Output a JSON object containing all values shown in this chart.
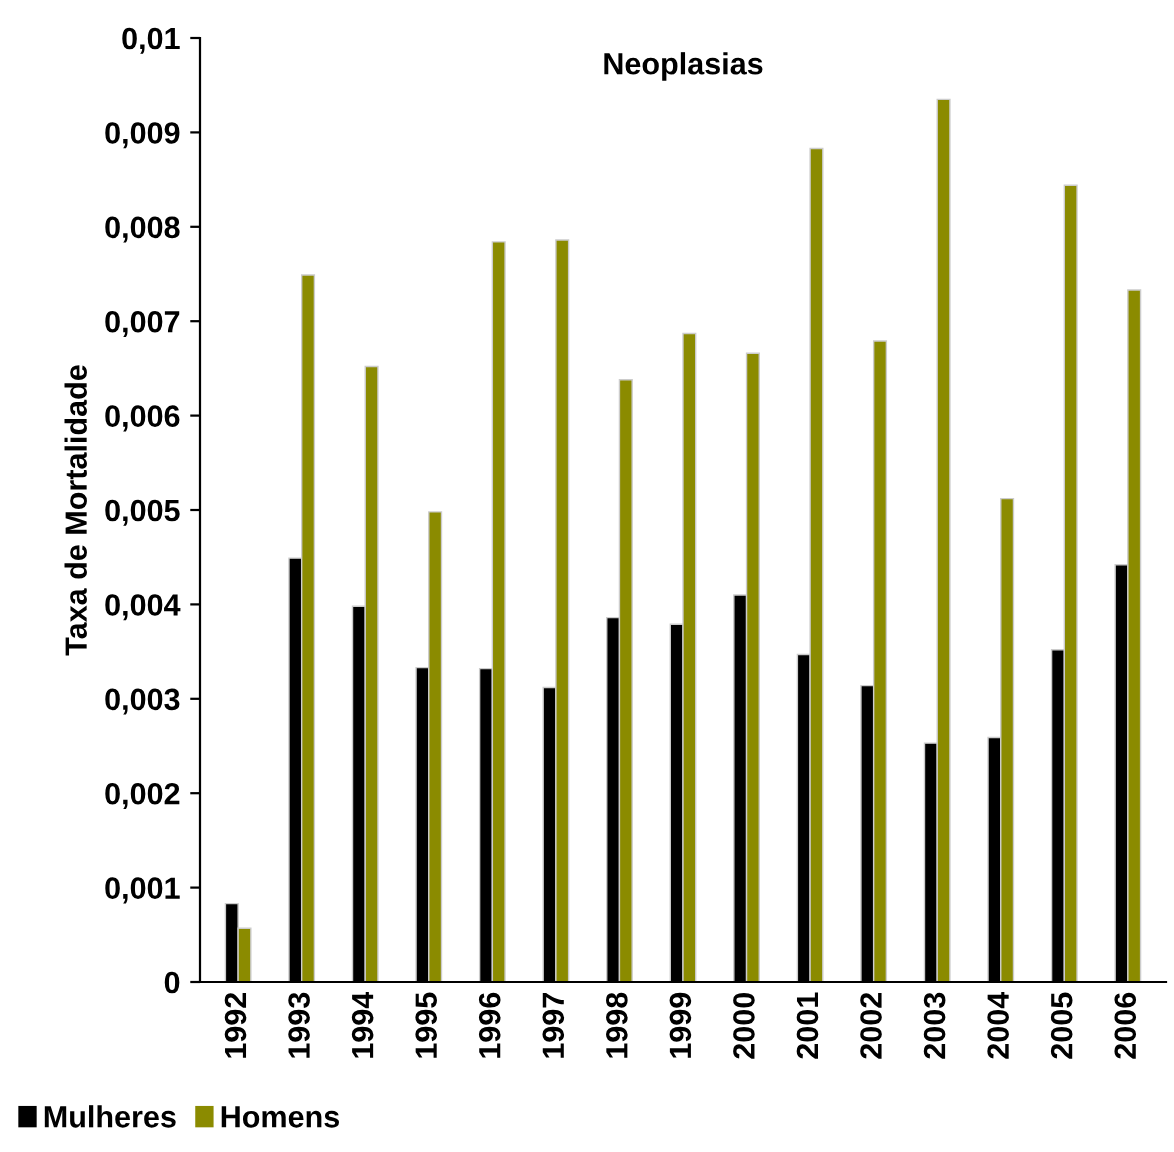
{
  "chart_data": {
    "type": "bar",
    "title": "Neoplasias",
    "ylabel": "Taxa de Mortalidade",
    "categories": [
      "1992",
      "1993",
      "1994",
      "1995",
      "1996",
      "1997",
      "1998",
      "1999",
      "2000",
      "2001",
      "2002",
      "2003",
      "2004",
      "2005",
      "2006"
    ],
    "series": [
      {
        "name": "Mulheres",
        "color": "#000000",
        "values": [
          0.00083,
          0.00449,
          0.00398,
          0.00333,
          0.00332,
          0.00312,
          0.00386,
          0.00379,
          0.0041,
          0.00347,
          0.00314,
          0.00253,
          0.00259,
          0.00352,
          0.00442
        ]
      },
      {
        "name": "Homens",
        "color": "#8b8b00",
        "values": [
          0.00057,
          0.00749,
          0.00652,
          0.00498,
          0.00784,
          0.00786,
          0.00638,
          0.00687,
          0.00666,
          0.00883,
          0.00679,
          0.00935,
          0.00512,
          0.00844,
          0.00733
        ]
      }
    ],
    "ylim": [
      0,
      0.01
    ],
    "yticks": [
      0,
      {
        "value": 0.001,
        "label": "0,001"
      },
      {
        "value": 0.002,
        "label": "0,002"
      },
      {
        "value": 0.003,
        "label": "0,003"
      },
      {
        "value": 0.004,
        "label": "0,004"
      },
      {
        "value": 0.005,
        "label": "0,005"
      },
      {
        "value": 0.006,
        "label": "0,006"
      },
      {
        "value": 0.007,
        "label": "0,007"
      },
      {
        "value": 0.008,
        "label": "0,008"
      },
      {
        "value": 0.009,
        "label": "0,009"
      },
      {
        "value": 0.01,
        "label": "0,01"
      }
    ],
    "grid": false,
    "legend": "bottom left"
  }
}
